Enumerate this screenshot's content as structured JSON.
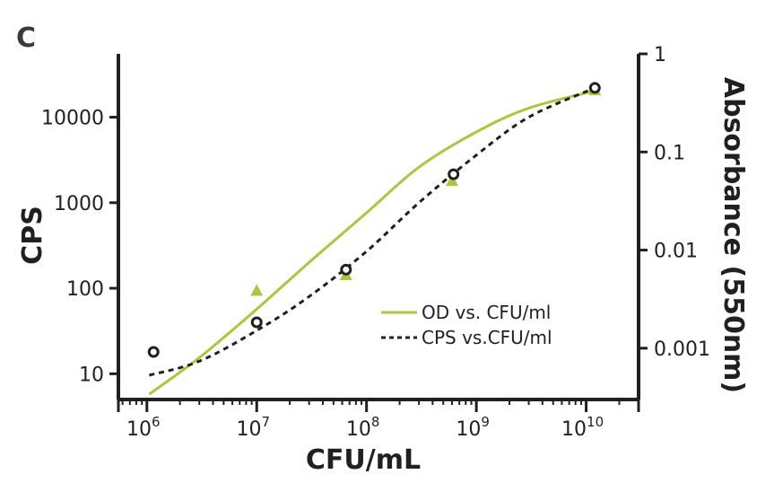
{
  "panel_label": "C",
  "chart_data": {
    "type": "scatter",
    "xlabel": "CFU/mL",
    "ylabel": "CPS",
    "y2label": "Absorbance (550nm)",
    "x_scale": "log",
    "y_scale": "log",
    "y2_scale": "log",
    "xlim": [
      550000,
      30000000000
    ],
    "ylim": [
      5,
      55000
    ],
    "y2lim": [
      0.0003,
      1
    ],
    "x_ticks": [
      {
        "value": 1000000,
        "base": "10",
        "exp": "6"
      },
      {
        "value": 10000000,
        "base": "10",
        "exp": "7"
      },
      {
        "value": 100000000,
        "base": "10",
        "exp": "8"
      },
      {
        "value": 1000000000,
        "base": "10",
        "exp": "9"
      },
      {
        "value": 10000000000,
        "base": "10",
        "exp": "10"
      }
    ],
    "y_ticks": [
      {
        "value": 10,
        "label": "10"
      },
      {
        "value": 100,
        "label": "100"
      },
      {
        "value": 1000,
        "label": "1000"
      },
      {
        "value": 10000,
        "label": "10000"
      }
    ],
    "y2_ticks": [
      {
        "value": 0.001,
        "label": "0.001"
      },
      {
        "value": 0.01,
        "label": "0.01"
      },
      {
        "value": 0.1,
        "label": "0.1"
      },
      {
        "value": 1,
        "label": "1"
      }
    ],
    "grid": false,
    "legend_position": "center-right",
    "series": [
      {
        "name": "OD vs. CFU/ml",
        "axis": "right",
        "color": "#a8c93a",
        "marker": "triangle",
        "line_style": "solid",
        "points": [
          {
            "x": 10000000,
            "y": 0.0038
          },
          {
            "x": 65000000,
            "y": 0.0055
          },
          {
            "x": 600000000,
            "y": 0.05
          },
          {
            "x": 12000000000,
            "y": 0.42
          }
        ],
        "fit": [
          {
            "x": 1050000,
            "y": 0.00034
          },
          {
            "x": 3000000,
            "y": 0.0008
          },
          {
            "x": 10000000,
            "y": 0.0025
          },
          {
            "x": 30000000,
            "y": 0.0075
          },
          {
            "x": 100000000,
            "y": 0.024
          },
          {
            "x": 300000000,
            "y": 0.07
          },
          {
            "x": 1000000000,
            "y": 0.16
          },
          {
            "x": 3000000000,
            "y": 0.28
          },
          {
            "x": 12000000000,
            "y": 0.42
          }
        ]
      },
      {
        "name": "CPS vs.CFU/ml",
        "axis": "left",
        "color": "#231f20",
        "marker": "circle",
        "line_style": "dashed",
        "points": [
          {
            "x": 1150000,
            "y": 18
          },
          {
            "x": 10000000,
            "y": 40
          },
          {
            "x": 65000000,
            "y": 165
          },
          {
            "x": 620000000,
            "y": 2150
          },
          {
            "x": 12000000000,
            "y": 22000
          }
        ],
        "fit": [
          {
            "x": 1050000,
            "y": 9.6
          },
          {
            "x": 3000000,
            "y": 14
          },
          {
            "x": 10000000,
            "y": 32
          },
          {
            "x": 30000000,
            "y": 80
          },
          {
            "x": 100000000,
            "y": 270
          },
          {
            "x": 300000000,
            "y": 1000
          },
          {
            "x": 1000000000,
            "y": 3600
          },
          {
            "x": 3000000000,
            "y": 10000
          },
          {
            "x": 12000000000,
            "y": 22000
          }
        ]
      }
    ]
  }
}
